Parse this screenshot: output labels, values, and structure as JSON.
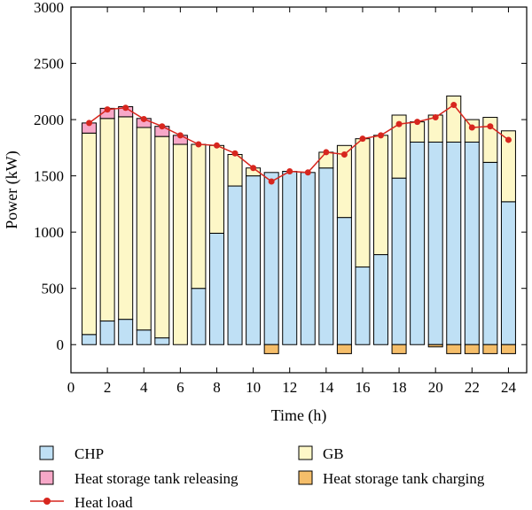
{
  "chart_data": {
    "type": "bar",
    "stacked": true,
    "title": "",
    "xlabel": "Time (h)",
    "ylabel": "Power (kW)",
    "xlim": [
      0,
      25
    ],
    "ylim": [
      -250,
      3000
    ],
    "xticks": [
      0,
      2,
      4,
      6,
      8,
      10,
      12,
      14,
      16,
      18,
      20,
      22,
      24
    ],
    "yticks": [
      0,
      500,
      1000,
      1500,
      2000,
      2500,
      3000
    ],
    "x": [
      1,
      2,
      3,
      4,
      5,
      6,
      7,
      8,
      9,
      10,
      11,
      12,
      13,
      14,
      15,
      16,
      17,
      18,
      19,
      20,
      21,
      22,
      23,
      24
    ],
    "series": [
      {
        "name": "CHP",
        "color": "#bfe0f5",
        "values": [
          90,
          210,
          225,
          130,
          60,
          0,
          500,
          990,
          1410,
          1500,
          1530,
          1540,
          1530,
          1570,
          1130,
          690,
          800,
          1480,
          1800,
          1800,
          1800,
          1800,
          1620,
          1270
        ]
      },
      {
        "name": "GB",
        "color": "#fdf7c7",
        "values": [
          1790,
          1800,
          1800,
          1800,
          1790,
          1780,
          1280,
          780,
          280,
          70,
          0,
          0,
          0,
          140,
          640,
          1140,
          1060,
          560,
          180,
          240,
          410,
          200,
          400,
          630
        ]
      },
      {
        "name": "Heat storage tank releasing",
        "color": "#f7a8c8",
        "values": [
          90,
          90,
          90,
          80,
          90,
          80,
          0,
          0,
          0,
          0,
          0,
          0,
          0,
          0,
          0,
          0,
          0,
          0,
          0,
          0,
          0,
          0,
          0,
          0
        ]
      },
      {
        "name": "Heat storage tank charging",
        "color": "#f5be6a",
        "values": [
          0,
          0,
          0,
          0,
          0,
          0,
          0,
          0,
          0,
          0,
          -80,
          0,
          0,
          0,
          -80,
          0,
          0,
          -80,
          0,
          -20,
          -80,
          -80,
          -80,
          -80
        ]
      },
      {
        "name": "Heat load",
        "color": "#d7261e",
        "type": "line",
        "values": [
          1970,
          2090,
          2105,
          2005,
          1940,
          1860,
          1780,
          1770,
          1700,
          1570,
          1450,
          1540,
          1530,
          1710,
          1690,
          1830,
          1860,
          1960,
          1980,
          2020,
          2130,
          1930,
          1940,
          1820
        ]
      }
    ],
    "legend": {
      "position": "bottom"
    }
  }
}
